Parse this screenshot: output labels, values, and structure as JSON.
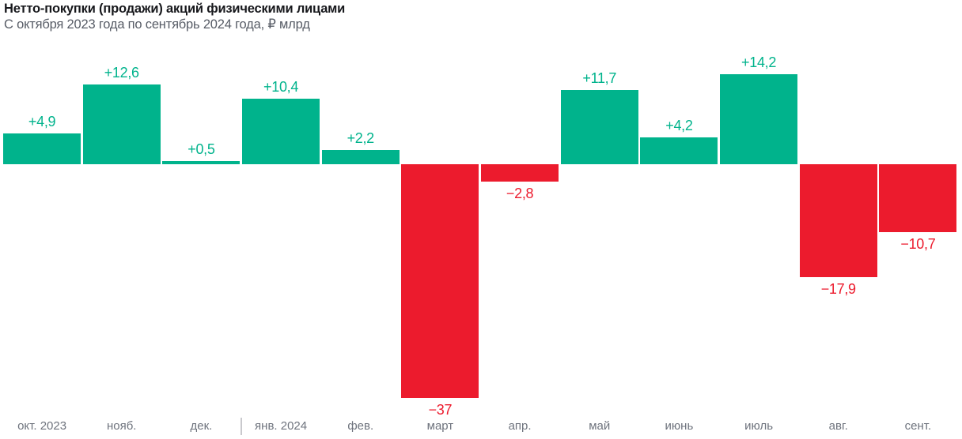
{
  "header": {
    "title": "Нетто-покупки (продажи) акций физическими лицами",
    "subtitle": "С октября 2023 года по сентябрь 2024 года, ₽ млрд"
  },
  "chart_data": {
    "type": "bar",
    "title": "Нетто-покупки (продажи) акций физическими лицами",
    "subtitle": "С октября 2023 года по сентябрь 2024 года, ₽ млрд",
    "unit": "₽ млрд",
    "categories": [
      "окт. 2023",
      "нояб.",
      "дек.",
      "янв. 2024",
      "фев.",
      "март",
      "апр.",
      "май",
      "июнь",
      "июль",
      "авг.",
      "сент."
    ],
    "values": [
      4.9,
      12.6,
      0.5,
      10.4,
      2.2,
      -37,
      -2.8,
      11.7,
      4.2,
      14.2,
      -17.9,
      -10.7
    ],
    "value_labels": [
      "+4,9",
      "+12,6",
      "+0,5",
      "+10,4",
      "+2,2",
      "−37",
      "−2,8",
      "+11,7",
      "+4,2",
      "+14,2",
      "−17,9",
      "−10,7"
    ],
    "xlabel": "",
    "ylabel": "",
    "ylim": [
      -40,
      16
    ],
    "grid": false,
    "legend": false,
    "axis_line": false,
    "positive_color": "#00b38c",
    "negative_color": "#ec1b2d",
    "axis_label_color": "#6e737d",
    "year_divider_after_index": 2,
    "year_divider_color": "#c9c9cd"
  }
}
